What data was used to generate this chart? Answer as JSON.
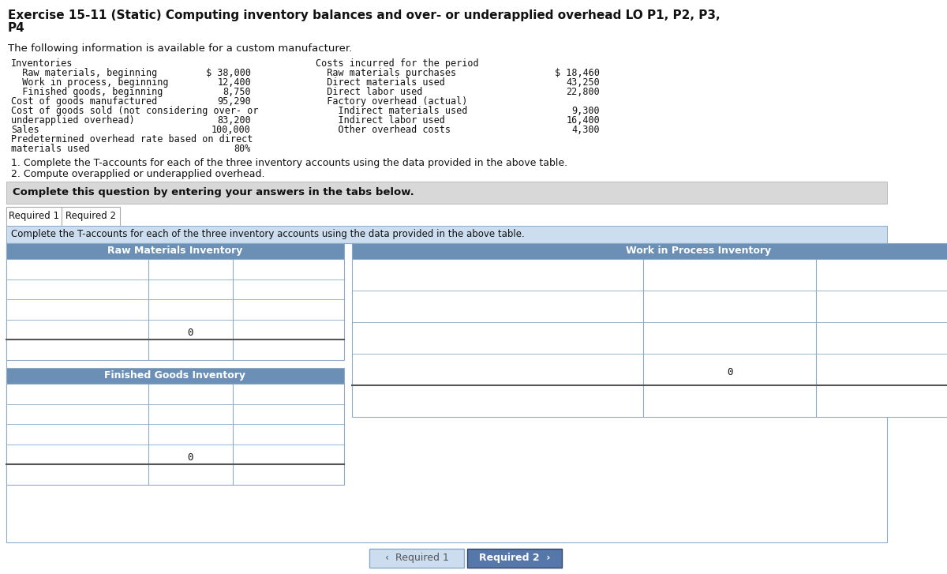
{
  "title_line1": "Exercise 15-11 (Static) Computing inventory balances and over- or underapplied overhead LO P1, P2, P3,",
  "title_line2": "P4",
  "intro": "The following information is available for a custom manufacturer.",
  "left_col": [
    {
      "label": "Inventories",
      "value": "",
      "indent": 0
    },
    {
      "label": "  Raw materials, beginning",
      "value": "$ 38,000",
      "indent": 1
    },
    {
      "label": "  Work in process, beginning",
      "value": "12,400",
      "indent": 1
    },
    {
      "label": "  Finished goods, beginning",
      "value": "8,750",
      "indent": 1
    },
    {
      "label": "Cost of goods manufactured",
      "value": "95,290",
      "indent": 0
    },
    {
      "label": "Cost of goods sold (not considering over- or",
      "value": "",
      "indent": 0
    },
    {
      "label": "underapplied overhead)",
      "value": "83,200",
      "indent": 0
    },
    {
      "label": "Sales",
      "value": "100,000",
      "indent": 0
    },
    {
      "label": "Predetermined overhead rate based on direct",
      "value": "",
      "indent": 0
    },
    {
      "label": "materials used",
      "value": "80%",
      "indent": 0
    }
  ],
  "right_col": [
    {
      "label": "Costs incurred for the period",
      "value": ""
    },
    {
      "label": "  Raw materials purchases",
      "value": "$ 18,460"
    },
    {
      "label": "  Direct materials used",
      "value": "43,250"
    },
    {
      "label": "  Direct labor used",
      "value": "22,800"
    },
    {
      "label": "  Factory overhead (actual)",
      "value": ""
    },
    {
      "label": "    Indirect materials used",
      "value": "9,300"
    },
    {
      "label": "    Indirect labor used",
      "value": "16,400"
    },
    {
      "label": "    Other overhead costs",
      "value": "4,300"
    }
  ],
  "req1": "1. Complete the T-accounts for each of the three inventory accounts using the data provided in the above table.",
  "req2": "2. Compute overapplied or underapplied overhead.",
  "complete_text": "Complete this question by entering your answers in the tabs below.",
  "tab1": "Required 1",
  "tab2": "Required 2",
  "instruction": "Complete the T-accounts for each of the three inventory accounts using the data provided in the above table.",
  "headers": [
    "Raw Materials Inventory",
    "Work in Process Inventory",
    "Finished Goods Inventory"
  ],
  "nav_left_text": "‹  Required 1",
  "nav_right_text": "Required 2  ›",
  "white": "#ffffff",
  "header_blue": "#6b8fb5",
  "light_blue": "#ccddf0",
  "gray_banner": "#d8d8d8",
  "tab_active_blue": "#5577aa",
  "border_col": "#8aaac8",
  "text_dark": "#111111",
  "n_rows": 5
}
